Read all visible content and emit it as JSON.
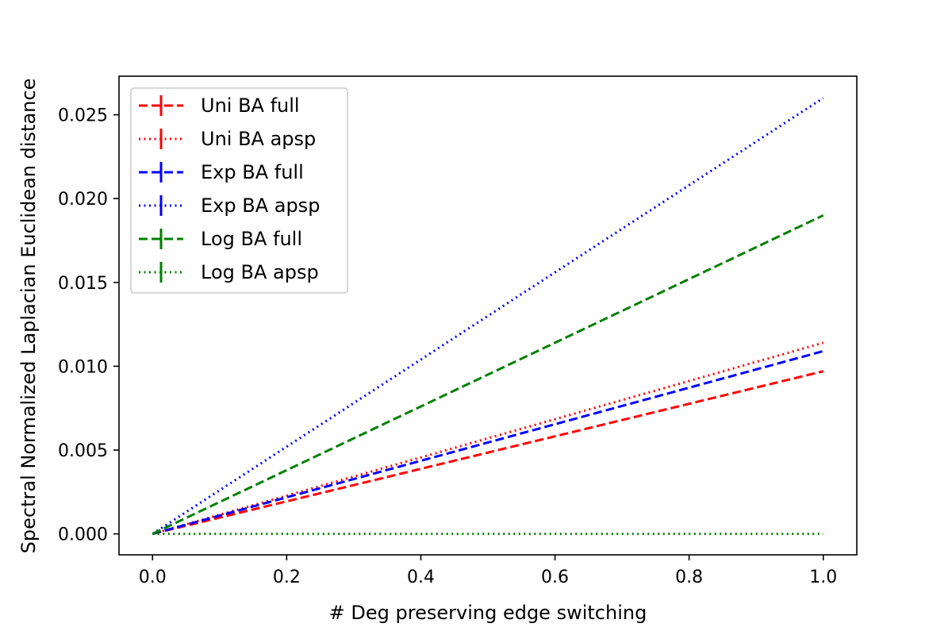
{
  "chart_data": {
    "type": "line",
    "title": "",
    "xlabel": "# Deg preserving edge switching",
    "ylabel": "Spectral Normalized Laplacian Euclidean distance",
    "xlim": [
      -0.05,
      1.05
    ],
    "ylim": [
      -0.00125,
      0.0273
    ],
    "xticks": [
      0.0,
      0.2,
      0.4,
      0.6,
      0.8,
      1.0
    ],
    "xtick_labels": [
      "0.0",
      "0.2",
      "0.4",
      "0.6",
      "0.8",
      "1.0"
    ],
    "yticks": [
      0.0,
      0.005,
      0.01,
      0.015,
      0.02,
      0.025
    ],
    "ytick_labels": [
      "0.000",
      "0.005",
      "0.010",
      "0.015",
      "0.020",
      "0.025"
    ],
    "grid": false,
    "legend_position": "top-left",
    "error_bars": true,
    "x": [
      0.0,
      1.0
    ],
    "series": [
      {
        "name": "Uni BA full",
        "values": [
          0.0,
          0.0097
        ],
        "color": "#ff0000",
        "linestyle": "dashed"
      },
      {
        "name": "Uni BA apsp",
        "values": [
          0.0,
          0.0114
        ],
        "color": "#ff0000",
        "linestyle": "dotted"
      },
      {
        "name": "Exp BA full",
        "values": [
          0.0,
          0.0109
        ],
        "color": "#0000ff",
        "linestyle": "dashed"
      },
      {
        "name": "Exp BA apsp",
        "values": [
          0.0,
          0.026
        ],
        "color": "#0000ff",
        "linestyle": "dotted"
      },
      {
        "name": "Log BA full",
        "values": [
          0.0,
          0.019
        ],
        "color": "#008000",
        "linestyle": "dashed"
      },
      {
        "name": "Log BA apsp",
        "values": [
          0.0,
          0.0
        ],
        "color": "#008000",
        "linestyle": "dotted"
      }
    ]
  }
}
